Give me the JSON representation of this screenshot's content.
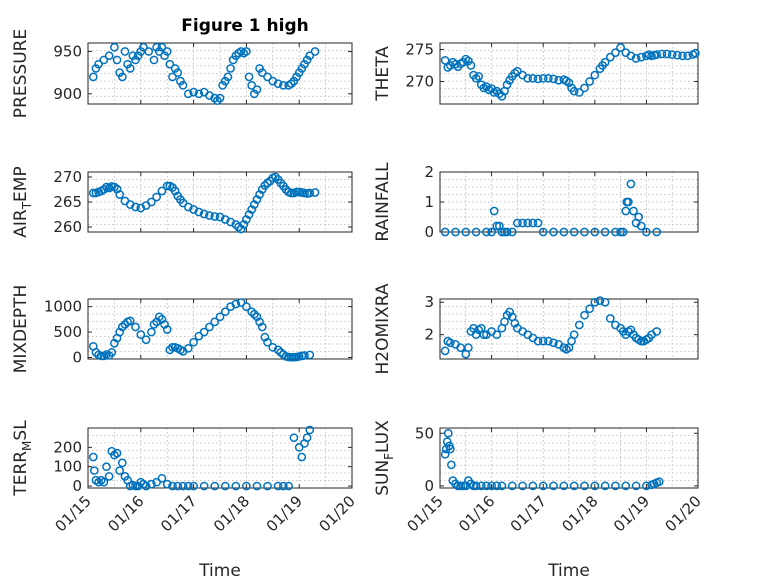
{
  "figure": {
    "title": "Figure 1 high",
    "marker_color": "#0072bd",
    "background": "#ffffff"
  },
  "chart_data": [
    {
      "type": "scatter",
      "ylabel": "PRESSURE",
      "ylim": [
        888,
        960
      ],
      "yticks": [
        900,
        950
      ],
      "xlim": [
        "2021-01-15",
        "2021-01-20"
      ],
      "show_x_ticks": false,
      "grid": true,
      "x": [
        0.1,
        0.15,
        0.2,
        0.3,
        0.4,
        0.5,
        0.55,
        0.6,
        0.65,
        0.7,
        0.75,
        0.8,
        0.85,
        0.9,
        0.95,
        1.0,
        1.05,
        1.15,
        1.25,
        1.3,
        1.35,
        1.4,
        1.45,
        1.5,
        1.55,
        1.6,
        1.65,
        1.7,
        1.75,
        1.8,
        1.9,
        2.0,
        2.1,
        2.2,
        2.3,
        2.4,
        2.45,
        2.5,
        2.55,
        2.6,
        2.65,
        2.7,
        2.75,
        2.8,
        2.85,
        2.9,
        2.95,
        3.0,
        3.05,
        3.1,
        3.15,
        3.2,
        3.25,
        3.3,
        3.4,
        3.5,
        3.6,
        3.7,
        3.8,
        3.85,
        3.9,
        3.95,
        4.0,
        4.05,
        4.1,
        4.15,
        4.2,
        4.3
      ],
      "y": [
        920,
        930,
        935,
        940,
        945,
        955,
        940,
        925,
        920,
        950,
        935,
        930,
        945,
        940,
        945,
        950,
        955,
        950,
        940,
        955,
        950,
        955,
        945,
        950,
        935,
        920,
        930,
        925,
        915,
        910,
        900,
        902,
        900,
        902,
        898,
        895,
        892,
        895,
        910,
        915,
        920,
        930,
        940,
        945,
        948,
        950,
        948,
        950,
        920,
        910,
        900,
        905,
        930,
        925,
        920,
        915,
        912,
        910,
        910,
        912,
        915,
        920,
        925,
        930,
        935,
        940,
        945,
        950
      ]
    },
    {
      "type": "scatter",
      "ylabel": "THETA",
      "ylim": [
        266.5,
        276
      ],
      "yticks": [
        270,
        275
      ],
      "xlim": [
        "2021-01-15",
        "2021-01-20"
      ],
      "show_x_ticks": false,
      "grid": true,
      "x": [
        0.1,
        0.15,
        0.2,
        0.25,
        0.3,
        0.35,
        0.4,
        0.45,
        0.5,
        0.55,
        0.6,
        0.65,
        0.7,
        0.75,
        0.8,
        0.85,
        0.9,
        0.95,
        1.0,
        1.05,
        1.1,
        1.15,
        1.2,
        1.25,
        1.3,
        1.35,
        1.4,
        1.45,
        1.5,
        1.6,
        1.7,
        1.8,
        1.9,
        2.0,
        2.1,
        2.2,
        2.3,
        2.4,
        2.45,
        2.5,
        2.55,
        2.6,
        2.7,
        2.8,
        2.9,
        3.0,
        3.1,
        3.15,
        3.2,
        3.3,
        3.4,
        3.5,
        3.6,
        3.7,
        3.8,
        3.9,
        4.0,
        4.05,
        4.1,
        4.15,
        4.2,
        4.3,
        4.4,
        4.5,
        4.6,
        4.7,
        4.8,
        4.9,
        4.95
      ],
      "y": [
        273.3,
        272.2,
        272.5,
        273.0,
        272.7,
        272.3,
        272.8,
        273.0,
        273.5,
        273.2,
        272.5,
        271.0,
        270.5,
        270.8,
        269.5,
        269.0,
        269.2,
        268.7,
        268.9,
        268.3,
        268.5,
        268.1,
        267.7,
        268.5,
        269.5,
        270.2,
        270.8,
        271.3,
        271.6,
        271.0,
        270.5,
        270.5,
        270.4,
        270.5,
        270.5,
        270.4,
        270.2,
        270.3,
        270.1,
        269.8,
        269.0,
        268.5,
        268.3,
        269.0,
        270.0,
        271.0,
        272.0,
        272.5,
        273.0,
        273.8,
        274.5,
        275.3,
        274.5,
        274.0,
        273.6,
        273.8,
        274.0,
        274.2,
        274.0,
        274.1,
        274.2,
        274.3,
        274.3,
        274.2,
        274.1,
        274.0,
        274.0,
        274.2,
        274.4
      ]
    },
    {
      "type": "scatter",
      "ylabel": "AIR_TEMP",
      "ylim": [
        259,
        271
      ],
      "yticks": [
        260,
        265,
        270
      ],
      "xlim": [
        "2021-01-15",
        "2021-01-20"
      ],
      "show_x_ticks": false,
      "grid": true,
      "x": [
        0.1,
        0.15,
        0.2,
        0.25,
        0.3,
        0.35,
        0.4,
        0.45,
        0.5,
        0.55,
        0.6,
        0.7,
        0.8,
        0.9,
        1.0,
        1.1,
        1.2,
        1.3,
        1.4,
        1.5,
        1.55,
        1.6,
        1.65,
        1.7,
        1.75,
        1.8,
        1.9,
        2.0,
        2.1,
        2.2,
        2.3,
        2.4,
        2.5,
        2.6,
        2.7,
        2.8,
        2.85,
        2.9,
        2.95,
        3.0,
        3.05,
        3.1,
        3.15,
        3.2,
        3.25,
        3.3,
        3.35,
        3.4,
        3.45,
        3.5,
        3.55,
        3.6,
        3.65,
        3.7,
        3.75,
        3.8,
        3.85,
        3.9,
        3.95,
        4.0,
        4.05,
        4.1,
        4.15,
        4.2,
        4.3
      ],
      "y": [
        266.8,
        266.8,
        267.0,
        267.2,
        267.5,
        268.0,
        267.8,
        268.1,
        268.0,
        267.6,
        266.5,
        265.2,
        264.5,
        264.0,
        263.8,
        264.3,
        265.0,
        266.0,
        267.2,
        268.2,
        268.2,
        267.9,
        267.2,
        266.2,
        265.5,
        264.8,
        264.0,
        263.5,
        263.0,
        262.6,
        262.3,
        262.1,
        262.0,
        261.5,
        261.0,
        260.5,
        260.0,
        259.6,
        260.5,
        261.5,
        262.5,
        263.5,
        264.5,
        265.5,
        266.5,
        267.5,
        268.3,
        268.8,
        269.2,
        269.8,
        270.0,
        269.5,
        268.8,
        268.2,
        267.5,
        267.0,
        266.8,
        266.8,
        267.0,
        267.0,
        266.9,
        266.8,
        266.7,
        266.8,
        266.9
      ]
    },
    {
      "type": "scatter",
      "ylabel": "RAINFALL",
      "ylim": [
        0,
        2
      ],
      "yticks": [
        0,
        1,
        2
      ],
      "xlim": [
        "2021-01-15",
        "2021-01-20"
      ],
      "show_x_ticks": false,
      "grid": true,
      "x": [
        0.1,
        0.3,
        0.5,
        0.7,
        0.9,
        1.0,
        1.05,
        1.1,
        1.15,
        1.2,
        1.25,
        1.3,
        1.4,
        1.5,
        1.6,
        1.7,
        1.8,
        1.9,
        2.0,
        2.2,
        2.4,
        2.6,
        2.8,
        3.0,
        3.2,
        3.4,
        3.5,
        3.55,
        3.6,
        3.62,
        3.65,
        3.7,
        3.75,
        3.8,
        3.85,
        3.9,
        4.0,
        4.2
      ],
      "y": [
        0,
        0,
        0,
        0,
        0,
        0,
        0.7,
        0.2,
        0.2,
        0,
        0,
        0,
        0,
        0.3,
        0.3,
        0.3,
        0.3,
        0.3,
        0,
        0,
        0,
        0,
        0,
        0,
        0,
        0,
        0,
        0,
        0.7,
        1.0,
        1.0,
        1.6,
        0.7,
        0.3,
        0.5,
        0.2,
        0,
        0
      ]
    },
    {
      "type": "scatter",
      "ylabel": "MIXDEPTH",
      "ylim": [
        -30,
        1150
      ],
      "yticks": [
        0,
        500,
        1000
      ],
      "xlim": [
        "2021-01-15",
        "2021-01-20"
      ],
      "show_x_ticks": false,
      "grid": true,
      "x": [
        0.1,
        0.15,
        0.2,
        0.25,
        0.3,
        0.35,
        0.4,
        0.45,
        0.5,
        0.55,
        0.6,
        0.65,
        0.7,
        0.75,
        0.8,
        0.9,
        1.0,
        1.1,
        1.2,
        1.25,
        1.3,
        1.35,
        1.4,
        1.45,
        1.5,
        1.55,
        1.6,
        1.65,
        1.7,
        1.75,
        1.8,
        1.9,
        2.0,
        2.1,
        2.2,
        2.3,
        2.4,
        2.5,
        2.6,
        2.7,
        2.8,
        2.9,
        3.0,
        3.1,
        3.15,
        3.2,
        3.25,
        3.3,
        3.35,
        3.4,
        3.5,
        3.6,
        3.65,
        3.7,
        3.75,
        3.8,
        3.85,
        3.9,
        3.95,
        4.0,
        4.05,
        4.1,
        4.2
      ],
      "y": [
        220,
        100,
        50,
        30,
        30,
        60,
        40,
        100,
        280,
        380,
        500,
        600,
        650,
        700,
        720,
        600,
        450,
        350,
        500,
        650,
        700,
        800,
        750,
        650,
        550,
        150,
        200,
        200,
        180,
        150,
        120,
        180,
        300,
        420,
        500,
        600,
        700,
        800,
        900,
        1000,
        1050,
        1080,
        1000,
        900,
        850,
        800,
        700,
        600,
        400,
        300,
        200,
        150,
        100,
        60,
        20,
        10,
        5,
        5,
        10,
        20,
        30,
        40,
        50
      ]
    },
    {
      "type": "scatter",
      "ylabel": "H2OMIXRA",
      "ylim": [
        1.25,
        3.1
      ],
      "yticks": [
        2,
        3
      ],
      "xlim": [
        "2021-01-15",
        "2021-01-20"
      ],
      "show_x_ticks": false,
      "grid": true,
      "x": [
        0.1,
        0.15,
        0.2,
        0.3,
        0.4,
        0.5,
        0.55,
        0.6,
        0.65,
        0.7,
        0.75,
        0.8,
        0.85,
        0.9,
        1.0,
        1.1,
        1.2,
        1.25,
        1.3,
        1.35,
        1.4,
        1.45,
        1.5,
        1.6,
        1.7,
        1.8,
        1.9,
        2.0,
        2.1,
        2.2,
        2.3,
        2.4,
        2.45,
        2.5,
        2.55,
        2.6,
        2.7,
        2.8,
        2.9,
        3.0,
        3.1,
        3.2,
        3.3,
        3.4,
        3.5,
        3.55,
        3.6,
        3.65,
        3.7,
        3.75,
        3.8,
        3.85,
        3.9,
        3.95,
        4.0,
        4.05,
        4.1,
        4.2
      ],
      "y": [
        1.5,
        1.8,
        1.75,
        1.7,
        1.6,
        1.4,
        1.6,
        2.1,
        2.2,
        2.0,
        2.15,
        2.2,
        2.0,
        2.0,
        2.1,
        2.0,
        2.2,
        2.4,
        2.6,
        2.7,
        2.55,
        2.35,
        2.2,
        2.1,
        2.0,
        1.9,
        1.8,
        1.8,
        1.8,
        1.75,
        1.7,
        1.6,
        1.55,
        1.6,
        1.8,
        2.0,
        2.3,
        2.6,
        2.8,
        3.0,
        3.05,
        3.0,
        2.5,
        2.3,
        2.2,
        2.1,
        2.0,
        2.1,
        2.15,
        2.0,
        1.9,
        1.85,
        1.8,
        1.8,
        1.85,
        1.9,
        2.0,
        2.1
      ]
    },
    {
      "type": "scatter",
      "ylabel": "TERR_MSL",
      "ylim": [
        -10,
        300
      ],
      "yticks": [
        0,
        100,
        200
      ],
      "xlim": [
        "2021-01-15",
        "2021-01-20"
      ],
      "xticks": [
        "01/15",
        "01/16",
        "01/17",
        "01/18",
        "01/19",
        "01/20"
      ],
      "show_x_ticks": true,
      "xlabel": "Time",
      "grid": true,
      "x": [
        0.1,
        0.12,
        0.15,
        0.2,
        0.25,
        0.3,
        0.35,
        0.4,
        0.45,
        0.5,
        0.55,
        0.6,
        0.65,
        0.7,
        0.75,
        0.8,
        0.85,
        0.9,
        0.95,
        1.0,
        1.05,
        1.1,
        1.2,
        1.3,
        1.4,
        1.5,
        1.6,
        1.7,
        1.8,
        1.9,
        2.0,
        2.2,
        2.4,
        2.6,
        2.8,
        3.0,
        3.2,
        3.4,
        3.6,
        3.7,
        3.8,
        3.9,
        4.0,
        4.05,
        4.1,
        4.15,
        4.2
      ],
      "y": [
        150,
        80,
        30,
        20,
        30,
        20,
        100,
        50,
        180,
        160,
        170,
        80,
        120,
        50,
        30,
        0,
        5,
        0,
        0,
        20,
        10,
        0,
        10,
        20,
        40,
        10,
        0,
        0,
        0,
        0,
        0,
        0,
        0,
        0,
        0,
        0,
        0,
        0,
        0,
        0,
        0,
        250,
        200,
        150,
        220,
        250,
        290
      ]
    },
    {
      "type": "scatter",
      "ylabel": "SUN_FLUX",
      "ylim": [
        -2,
        55
      ],
      "yticks": [
        0,
        50
      ],
      "xlim": [
        "2021-01-15",
        "2021-01-20"
      ],
      "xticks": [
        "01/15",
        "01/16",
        "01/17",
        "01/18",
        "01/19",
        "01/20"
      ],
      "show_x_ticks": true,
      "xlabel": "Time",
      "grid": true,
      "x": [
        0.1,
        0.12,
        0.14,
        0.16,
        0.18,
        0.2,
        0.22,
        0.25,
        0.3,
        0.35,
        0.4,
        0.45,
        0.5,
        0.55,
        0.6,
        0.65,
        0.7,
        0.8,
        0.9,
        1.0,
        1.1,
        1.2,
        1.4,
        1.6,
        1.8,
        2.0,
        2.2,
        2.4,
        2.6,
        2.8,
        3.0,
        3.2,
        3.4,
        3.6,
        3.8,
        4.0,
        4.1,
        4.15,
        4.2,
        4.25
      ],
      "y": [
        30,
        35,
        42,
        50,
        38,
        35,
        20,
        5,
        2,
        0,
        0,
        0,
        0,
        5,
        2,
        0,
        0,
        0,
        0,
        0,
        0,
        0,
        0,
        0,
        0,
        0,
        0,
        0,
        0,
        0,
        0,
        0,
        0,
        0,
        0,
        0,
        1,
        2,
        3,
        4
      ]
    }
  ]
}
